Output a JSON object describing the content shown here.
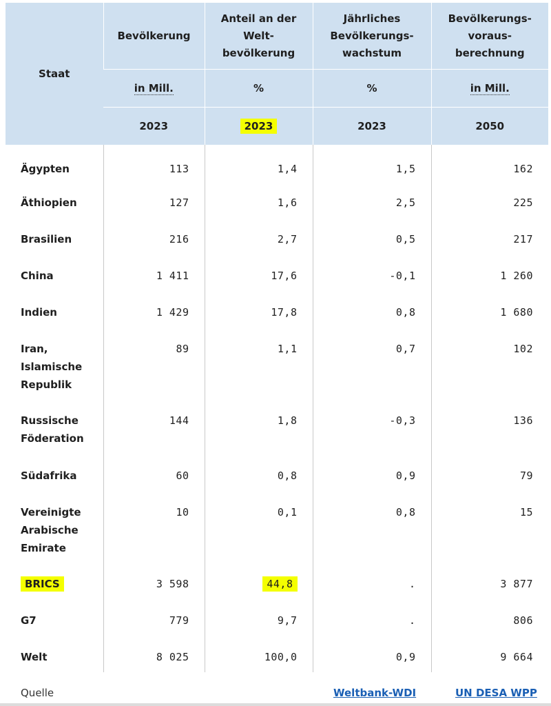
{
  "table": {
    "header": {
      "staat": "Staat",
      "columns": [
        {
          "title": "Bevölkerung",
          "unit": "in Mill.",
          "year": "2023"
        },
        {
          "title_line1": "Anteil an der",
          "title_line2": "Welt-",
          "title_line3": "bevölkerung",
          "unit": "%",
          "year": "2023"
        },
        {
          "title_line1": "Jährliches",
          "title_line2": "Bevölkerungs-",
          "title_line3": "wachstum",
          "unit": "%",
          "year": "2023"
        },
        {
          "title_line1": "Bevölkerungs-",
          "title_line2": "voraus-",
          "title_line3": "berechnung",
          "unit": "in Mill.",
          "year": "2050"
        }
      ]
    },
    "rows": [
      {
        "name": "Ägypten",
        "values": [
          "113",
          "1,4",
          "1,5",
          "162"
        ]
      },
      {
        "name": "Äthiopien",
        "values": [
          "127",
          "1,6",
          "2,5",
          "225"
        ]
      },
      {
        "name": "Brasilien",
        "values": [
          "216",
          "2,7",
          "0,5",
          "217"
        ]
      },
      {
        "name": "China",
        "values": [
          "1 411",
          "17,6",
          "-0,1",
          "1 260"
        ]
      },
      {
        "name": "Indien",
        "values": [
          "1 429",
          "17,8",
          "0,8",
          "1 680"
        ]
      },
      {
        "name_lines": [
          "Iran,",
          "Islamische",
          "Republik"
        ],
        "values": [
          "89",
          "1,1",
          "0,7",
          "102"
        ]
      },
      {
        "name_lines": [
          "Russische",
          "Föderation"
        ],
        "values": [
          "144",
          "1,8",
          "-0,3",
          "136"
        ]
      },
      {
        "name": "Südafrika",
        "values": [
          "60",
          "0,8",
          "0,9",
          "79"
        ]
      },
      {
        "name_lines": [
          "Vereinigte",
          "Arabische",
          "Emirate"
        ],
        "values": [
          "10",
          "0,1",
          "0,8",
          "15"
        ]
      },
      {
        "name": "BRICS",
        "values": [
          "3 598",
          "44,8",
          ".",
          "3 877"
        ]
      },
      {
        "name": "G7",
        "values": [
          "779",
          "9,7",
          ".",
          "806"
        ]
      },
      {
        "name": "Welt",
        "values": [
          "8 025",
          "100,0",
          "0,9",
          "9 664"
        ]
      }
    ]
  },
  "footer": {
    "label": "Quelle",
    "link1": "Weltbank-WDI",
    "link2": "UN DESA WPP"
  },
  "colors": {
    "header_bg": "#cfe0f0",
    "highlight": "#f4ff00",
    "link": "#1a5fb4"
  }
}
